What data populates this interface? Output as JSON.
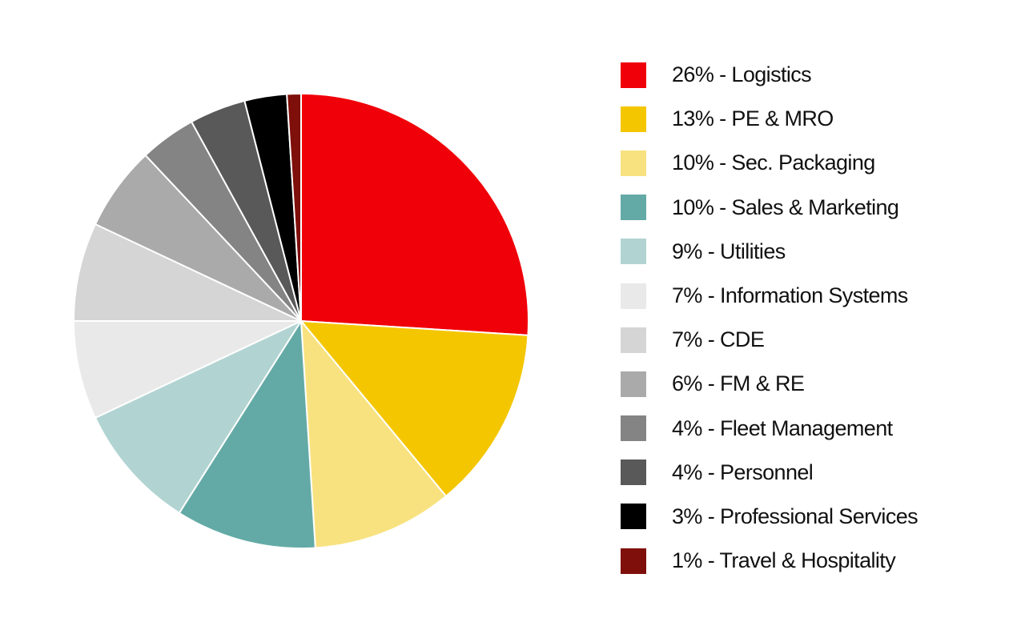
{
  "chart_data": {
    "type": "pie",
    "title": "",
    "start_angle_deg": 0,
    "direction": "clockwise",
    "slice_border_color": "#ffffff",
    "slices": [
      {
        "label": "26% - Logistics",
        "category": "Logistics",
        "value": 26,
        "color": "#f00008"
      },
      {
        "label": "13% - PE & MRO",
        "category": "PE & MRO",
        "value": 13,
        "color": "#f4c600"
      },
      {
        "label": "10% - Sec. Packaging",
        "category": "Sec. Packaging",
        "value": 10,
        "color": "#f8e27f"
      },
      {
        "label": "10% - Sales & Marketing",
        "category": "Sales & Marketing",
        "value": 10,
        "color": "#63aaa6"
      },
      {
        "label": "9% - Utilities",
        "category": "Utilities",
        "value": 9,
        "color": "#b1d4d2"
      },
      {
        "label": "7% - Information Systems",
        "category": "Information Systems",
        "value": 7,
        "color": "#e9e9e9"
      },
      {
        "label": "7% - CDE",
        "category": "CDE",
        "value": 7,
        "color": "#d5d5d5"
      },
      {
        "label": "6% - FM & RE",
        "category": "FM & RE",
        "value": 6,
        "color": "#aaaaaa"
      },
      {
        "label": "4% - Fleet Management",
        "category": "Fleet Management",
        "value": 4,
        "color": "#848484"
      },
      {
        "label": "4% - Personnel",
        "category": "Personnel",
        "value": 4,
        "color": "#595959"
      },
      {
        "label": "3% - Professional Services",
        "category": "Professional Services",
        "value": 3,
        "color": "#000000"
      },
      {
        "label": "1% - Travel & Hospitality",
        "category": "Travel & Hospitality",
        "value": 1,
        "color": "#7f0f0a"
      }
    ],
    "legend_position": "right"
  }
}
